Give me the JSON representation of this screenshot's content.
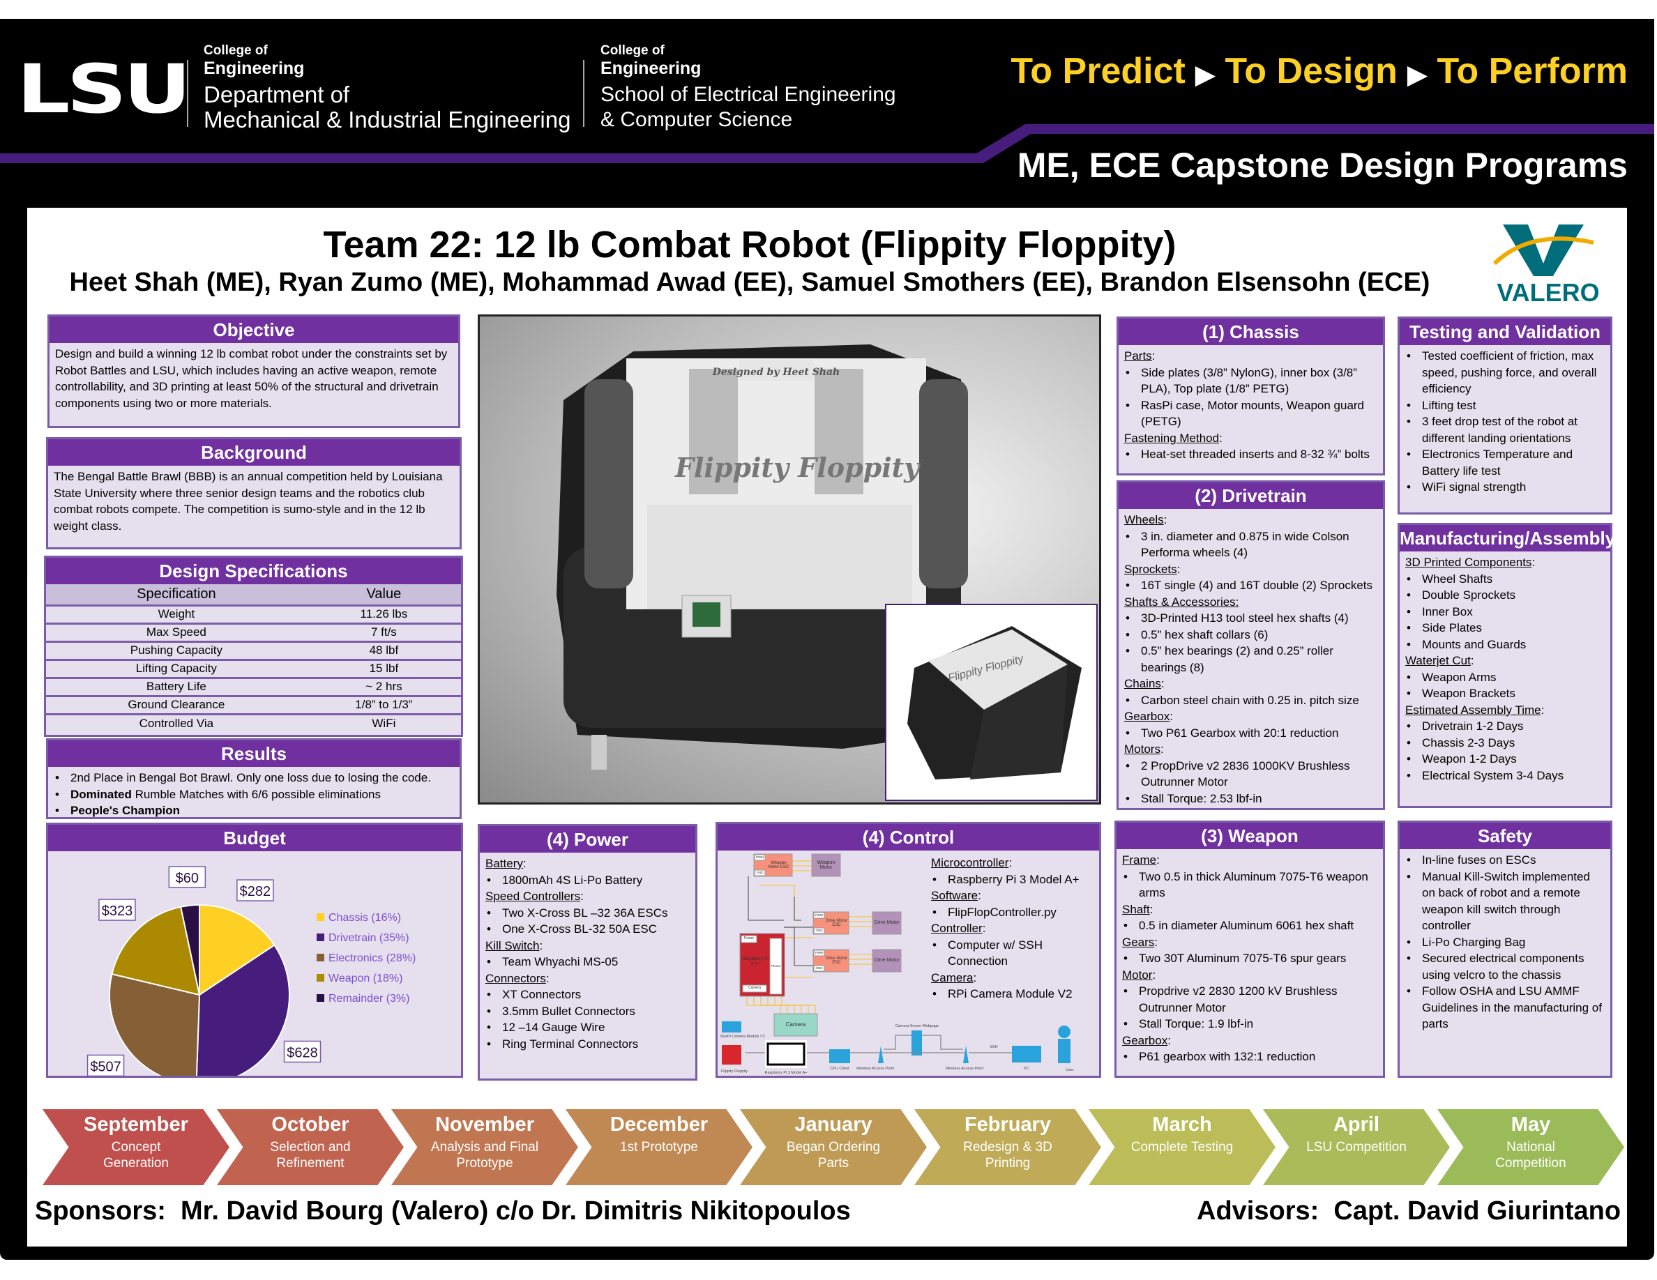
{
  "header": {
    "logo": "LSU",
    "me_college": "College of",
    "me_engineering": "Engineering",
    "me_dept1": "Department of",
    "me_dept2": "Mechanical & Industrial Engineering",
    "ece_college": "College of",
    "ece_engineering": "Engineering",
    "ece_dept1": "School of Electrical Engineering",
    "ece_dept2": "& Computer Science",
    "tagline": [
      "To Predict",
      "To Design",
      "To Perform"
    ],
    "program": "ME, ECE Capstone Design Programs",
    "colors": {
      "purple": "#461d7c",
      "gold": "#fdd023"
    }
  },
  "title": "Team 22: 12 lb Combat Robot (Flippity Floppity)",
  "authors": "Heet Shah (ME), Ryan Zumo (ME), Mohammad Awad (EE), Samuel Smothers (EE), Brandon Elsensohn (ECE)",
  "sponsor_logo": "VALERO",
  "objective": {
    "title": "Objective",
    "text": "Design and build a winning 12 lb combat robot under the constraints set by Robot Battles and LSU, which includes having an active weapon, remote controllability, and 3D printing at least 50% of the structural and drivetrain components using two or more materials."
  },
  "background": {
    "title": "Background",
    "text": "The Bengal Battle Brawl (BBB) is an annual competition held by Louisiana State University where three senior design teams and the robotics club combat robots compete.  The competition is sumo-style and in the 12 lb weight class."
  },
  "specs": {
    "title": "Design Specifications",
    "headers": [
      "Specification",
      "Value"
    ],
    "rows": [
      [
        "Weight",
        "11.26 lbs"
      ],
      [
        "Max Speed",
        "7 ft/s"
      ],
      [
        "Pushing Capacity",
        "48 lbf"
      ],
      [
        "Lifting Capacity",
        "15 lbf"
      ],
      [
        "Battery Life",
        "~ 2 hrs"
      ],
      [
        "Ground Clearance",
        "1/8” to 1/3”"
      ],
      [
        "Controlled Via",
        "WiFi"
      ]
    ]
  },
  "results": {
    "title": "Results",
    "items": [
      {
        "bold": "",
        "text": "2nd Place in Bengal Bot Brawl. Only one loss due to losing the code."
      },
      {
        "bold": "Dominated",
        "text": " Rumble Matches with 6/6 possible eliminations"
      },
      {
        "bold": "People's Champion",
        "text": ""
      }
    ]
  },
  "budget": {
    "title": "Budget"
  },
  "chart_data": {
    "type": "pie",
    "title": "Budget",
    "slices": [
      {
        "label": "Chassis (16%)",
        "value": 282,
        "data_label": "$282",
        "color": "#fdd023"
      },
      {
        "label": "Drivetrain (35%)",
        "value": 628,
        "data_label": "$628",
        "color": "#461d7c"
      },
      {
        "label": "Electronics (28%)",
        "value": 507,
        "data_label": "$507",
        "color": "#855f35"
      },
      {
        "label": "Weapon (18%)",
        "value": 323,
        "data_label": "$323",
        "color": "#ab8900"
      },
      {
        "label": "Remainder (3%)",
        "value": 60,
        "data_label": "$60",
        "color": "#2a0f45"
      }
    ],
    "legend": "right"
  },
  "photo": {
    "plate_text": "Flippity Floppity",
    "engraving": "Designed by Heet Shah"
  },
  "sections": {
    "chassis": {
      "title": "(1) Chassis",
      "lines": [
        [
          "h",
          "Parts"
        ],
        [
          "b",
          "Side plates (3/8” NylonG), inner box (3/8” PLA), Top plate (1/8” PETG)"
        ],
        [
          "b",
          "RasPi case, Motor mounts, Weapon guard (PETG)"
        ],
        [
          "h",
          "Fastening Method"
        ],
        [
          "b",
          "Heat-set threaded inserts and 8-32 ¾” bolts"
        ]
      ]
    },
    "drivetrain": {
      "title": "(2) Drivetrain",
      "lines": [
        [
          "h",
          "Wheels"
        ],
        [
          "b",
          "3 in. diameter and 0.875 in wide Colson Performa wheels (4)"
        ],
        [
          "h",
          "Sprockets"
        ],
        [
          "b",
          "16T single (4) and 16T double (2) Sprockets"
        ],
        [
          "h",
          "Shafts & Accessories:"
        ],
        [
          "b",
          "3D-Printed H13 tool steel hex shafts (4)"
        ],
        [
          "b",
          "0.5” hex shaft collars (6)"
        ],
        [
          "b",
          "0.5” hex bearings (2) and 0.25” roller bearings (8)"
        ],
        [
          "h",
          "Chains"
        ],
        [
          "b",
          "Carbon steel chain with 0.25 in. pitch size"
        ],
        [
          "h",
          "Gearbox"
        ],
        [
          "b",
          "Two P61 Gearbox with 20:1 reduction"
        ],
        [
          "h",
          "Motors"
        ],
        [
          "b",
          "2 PropDrive v2 2836 1000KV Brushless Outrunner Motor"
        ],
        [
          "b",
          "Stall Torque: 2.53 lbf-in"
        ]
      ]
    },
    "testing": {
      "title": "Testing and Validation",
      "lines": [
        [
          "b",
          "Tested coefficient of friction, max speed, pushing force, and overall efficiency"
        ],
        [
          "b",
          "Lifting test"
        ],
        [
          "b",
          "3 feet drop test of the robot at different landing orientations"
        ],
        [
          "b",
          "Electronics Temperature and Battery life test"
        ],
        [
          "b",
          "WiFi signal strength"
        ]
      ]
    },
    "manufacturing": {
      "title": "Manufacturing/Assembly",
      "lines": [
        [
          "h",
          "3D Printed Components"
        ],
        [
          "b",
          "Wheel Shafts"
        ],
        [
          "b",
          "Double Sprockets"
        ],
        [
          "b",
          "Inner Box"
        ],
        [
          "b",
          "Side Plates"
        ],
        [
          "b",
          "Mounts and Guards"
        ],
        [
          "h",
          "Waterjet Cut"
        ],
        [
          "b",
          "Weapon Arms"
        ],
        [
          "b",
          "Weapon Brackets"
        ],
        [
          "h",
          "Estimated Assembly Time"
        ],
        [
          "b",
          "Drivetrain 1-2 Days"
        ],
        [
          "b",
          "Chassis 2-3 Days"
        ],
        [
          "b",
          "Weapon 1-2 Days"
        ],
        [
          "b",
          "Electrical System 3-4 Days"
        ]
      ]
    },
    "power": {
      "title": "(4) Power",
      "lines": [
        [
          "h",
          "Battery"
        ],
        [
          "b",
          "1800mAh 4S Li-Po Battery"
        ],
        [
          "h",
          "Speed Controllers"
        ],
        [
          "b",
          "Two X-Cross BL –32 36A ESCs"
        ],
        [
          "b",
          "One X-Cross BL-32 50A ESC"
        ],
        [
          "h",
          "Kill Switch"
        ],
        [
          "b",
          "Team Whyachi MS-05"
        ],
        [
          "h",
          "Connectors"
        ],
        [
          "b",
          "XT Connectors"
        ],
        [
          "b",
          "3.5mm Bullet Connectors"
        ],
        [
          "b",
          "12 –14 Gauge Wire"
        ],
        [
          "b",
          "Ring Terminal Connectors"
        ]
      ]
    },
    "control": {
      "title": "(4) Control",
      "lines": [
        [
          "h",
          "Microcontroller"
        ],
        [
          "b",
          "Raspberry Pi 3 Model A+"
        ],
        [
          "h",
          "Software"
        ],
        [
          "b",
          "FlipFlopController.py"
        ],
        [
          "h",
          "Controller"
        ],
        [
          "b",
          "Computer w/ SSH Connection"
        ],
        [
          "h",
          "Camera"
        ],
        [
          "b",
          "RPi Camera Module V2"
        ]
      ]
    },
    "weapon": {
      "title": "(3) Weapon",
      "lines": [
        [
          "h",
          "Frame"
        ],
        [
          "b",
          "Two 0.5 in thick Aluminum 7075-T6 weapon arms"
        ],
        [
          "h",
          "Shaft"
        ],
        [
          "b",
          "0.5 in diameter Aluminum 6061 hex shaft"
        ],
        [
          "h",
          "Gears"
        ],
        [
          "b",
          "Two 30T Aluminum 7075-T6 spur gears"
        ],
        [
          "h",
          "Motor"
        ],
        [
          "b",
          "Propdrive v2 2830 1200 kV Brushless Outrunner Motor"
        ],
        [
          "b",
          "Stall Torque: 1.9 lbf-in"
        ],
        [
          "h",
          "Gearbox"
        ],
        [
          "b",
          "P61 gearbox with 132:1 reduction"
        ]
      ]
    },
    "safety": {
      "title": "Safety",
      "lines": [
        [
          "b",
          "In-line fuses on ESCs"
        ],
        [
          "b",
          "Manual Kill-Switch implemented on back of robot  and a remote weapon kill switch through controller"
        ],
        [
          "b",
          "Li-Po Charging Bag"
        ],
        [
          "b",
          "Secured electrical components using velcro to the chassis"
        ],
        [
          "b",
          "Follow OSHA and LSU AMMF Guidelines in the manufacturing of parts"
        ]
      ]
    }
  },
  "diagram": {
    "pwm": "PWM",
    "gnd": "GND",
    "weapon_esc": "Weapon Motor ESC",
    "weapon_motor": "Weapon Motor",
    "drive_esc": "Drive Motor ESC",
    "drive_motor": "Drive Motor",
    "power": "Power",
    "pi": "Raspberry Pi 3 A+",
    "pinout": "Pinout",
    "camera_port": "Camera",
    "camera": "Camera",
    "net": {
      "raspi_cam": "RasPi Camera Module V2",
      "robot": "Flippity Floppity",
      "pi": "Raspberry Pi 3 Model A+",
      "cpu": "CPU Client",
      "ap": "Wireless Access Point",
      "server": "Camera Server Webpage",
      "ssh": "SSH",
      "pc": "PC",
      "user": "User"
    }
  },
  "timeline": [
    {
      "month": "September",
      "desc": "Concept Generation",
      "color": "#c0504d"
    },
    {
      "month": "October",
      "desc": "Selection and Refinement",
      "color": "#c0634f"
    },
    {
      "month": "November",
      "desc": "Analysis and Final Prototype",
      "color": "#c07651"
    },
    {
      "month": "December",
      "desc": "1st Prototype",
      "color": "#c08853"
    },
    {
      "month": "January",
      "desc": "Began Ordering Parts",
      "color": "#be9a55"
    },
    {
      "month": "February",
      "desc": "Redesign & 3D Printing",
      "color": "#bfab57"
    },
    {
      "month": "March",
      "desc": "Complete Testing",
      "color": "#bcbc58"
    },
    {
      "month": "April",
      "desc": "LSU Competition",
      "color": "#acbb59"
    },
    {
      "month": "May",
      "desc": "National Competition",
      "color": "#9bbb59"
    }
  ],
  "sponsors": {
    "label": "Sponsors:",
    "text": "Mr. David Bourg (Valero) c/o Dr. Dimitris Nikitopoulos"
  },
  "advisors": {
    "label": "Advisors:",
    "text": "Capt. David Giurintano"
  }
}
